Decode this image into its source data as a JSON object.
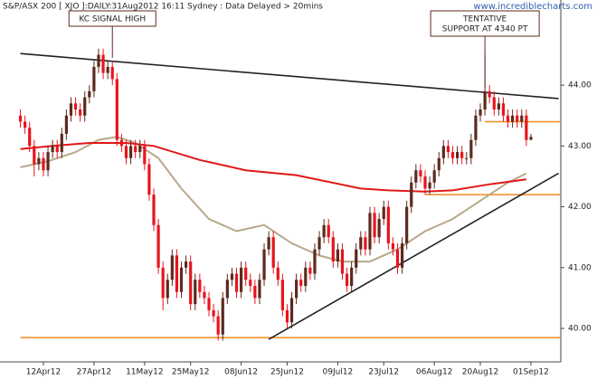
{
  "chart_data": {
    "type": "candlestick",
    "header": "S&P/ASX 200 [ XJO ]:DAILY:31Aug2012 16:11 Sydney : Data Delayed > 20mins",
    "source": "www.incrediblecharts.com",
    "up_color": "#5c2a1e",
    "down_color": "#e8141c",
    "ylim": [
      39.45,
      45.4
    ],
    "yticks": [
      {
        "value": 40,
        "label": "40.00"
      },
      {
        "value": 41,
        "label": "41.00"
      },
      {
        "value": 42,
        "label": "42.00"
      },
      {
        "value": 43,
        "label": "43.00"
      },
      {
        "value": 44,
        "label": "44.00"
      }
    ],
    "categories": [
      null,
      null,
      null,
      null,
      null,
      "12Apr12",
      null,
      null,
      null,
      null,
      null,
      null,
      null,
      null,
      null,
      null,
      "27Apr12",
      null,
      null,
      null,
      null,
      null,
      null,
      null,
      null,
      null,
      null,
      "11May12",
      null,
      null,
      null,
      null,
      null,
      null,
      null,
      null,
      null,
      "25May12",
      null,
      null,
      null,
      null,
      null,
      null,
      null,
      null,
      null,
      null,
      "08Jun12",
      null,
      null,
      null,
      null,
      null,
      null,
      null,
      null,
      null,
      "25Jun12",
      null,
      null,
      null,
      null,
      null,
      null,
      null,
      null,
      null,
      null,
      "09Jul12",
      null,
      null,
      null,
      null,
      null,
      null,
      null,
      null,
      null,
      "23Jul12",
      null,
      null,
      null,
      null,
      null,
      null,
      null,
      null,
      null,
      null,
      "06Aug12",
      null,
      null,
      null,
      null,
      null,
      null,
      null,
      null,
      null,
      "20Aug12",
      null,
      null,
      null,
      null,
      null,
      null,
      null,
      null,
      null,
      null,
      "01Sep12"
    ],
    "ohlc": [
      [
        43.5,
        43.6,
        43.3,
        43.4
      ],
      [
        43.4,
        43.5,
        43.2,
        43.3
      ],
      [
        43.3,
        43.4,
        42.9,
        43.0
      ],
      [
        43.0,
        43.1,
        42.5,
        42.7
      ],
      [
        42.7,
        42.9,
        42.6,
        42.8
      ],
      [
        42.8,
        42.9,
        42.5,
        42.6
      ],
      [
        42.6,
        43.0,
        42.5,
        42.9
      ],
      [
        42.9,
        43.1,
        42.8,
        43.0
      ],
      [
        43.0,
        43.1,
        42.8,
        42.9
      ],
      [
        42.9,
        43.3,
        42.8,
        43.2
      ],
      [
        43.2,
        43.6,
        43.1,
        43.5
      ],
      [
        43.5,
        43.8,
        43.4,
        43.7
      ],
      [
        43.7,
        43.8,
        43.5,
        43.6
      ],
      [
        43.6,
        43.7,
        43.4,
        43.5
      ],
      [
        43.5,
        43.9,
        43.4,
        43.8
      ],
      [
        43.8,
        44.0,
        43.7,
        43.9
      ],
      [
        43.9,
        44.4,
        43.8,
        44.3
      ],
      [
        44.3,
        44.6,
        44.2,
        44.5
      ],
      [
        44.5,
        44.6,
        44.1,
        44.2
      ],
      [
        44.2,
        44.4,
        44.1,
        44.3
      ],
      [
        44.3,
        44.4,
        44.0,
        44.1
      ],
      [
        44.1,
        44.2,
        43.0,
        43.1
      ],
      [
        43.1,
        43.2,
        42.9,
        43.0
      ],
      [
        43.0,
        43.1,
        42.7,
        42.8
      ],
      [
        42.8,
        43.1,
        42.7,
        43.0
      ],
      [
        43.0,
        43.1,
        42.8,
        42.9
      ],
      [
        42.9,
        43.1,
        42.8,
        43.0
      ],
      [
        43.0,
        43.1,
        42.6,
        42.7
      ],
      [
        42.7,
        42.8,
        42.1,
        42.2
      ],
      [
        42.2,
        42.3,
        41.6,
        41.7
      ],
      [
        41.7,
        41.8,
        40.9,
        41.0
      ],
      [
        41.0,
        41.1,
        40.3,
        40.5
      ],
      [
        40.5,
        40.9,
        40.4,
        40.8
      ],
      [
        40.8,
        41.3,
        40.7,
        41.2
      ],
      [
        41.2,
        41.3,
        40.5,
        40.6
      ],
      [
        40.6,
        41.1,
        40.5,
        41.0
      ],
      [
        41.0,
        41.2,
        40.9,
        41.1
      ],
      [
        41.1,
        41.2,
        40.3,
        40.4
      ],
      [
        40.4,
        40.9,
        40.3,
        40.8
      ],
      [
        40.8,
        40.9,
        40.5,
        40.6
      ],
      [
        40.6,
        40.7,
        40.4,
        40.5
      ],
      [
        40.5,
        40.6,
        40.2,
        40.3
      ],
      [
        40.3,
        40.4,
        40.1,
        40.2
      ],
      [
        40.2,
        40.3,
        39.8,
        39.9
      ],
      [
        39.9,
        40.6,
        39.8,
        40.5
      ],
      [
        40.5,
        40.9,
        40.4,
        40.8
      ],
      [
        40.8,
        41.0,
        40.7,
        40.9
      ],
      [
        40.9,
        41.0,
        40.5,
        40.6
      ],
      [
        40.6,
        41.1,
        40.5,
        41.0
      ],
      [
        41.0,
        41.1,
        40.7,
        40.8
      ],
      [
        40.8,
        40.9,
        40.6,
        40.7
      ],
      [
        40.7,
        40.8,
        40.4,
        40.5
      ],
      [
        40.5,
        40.9,
        40.4,
        40.8
      ],
      [
        40.8,
        41.4,
        40.7,
        41.3
      ],
      [
        41.3,
        41.6,
        41.2,
        41.5
      ],
      [
        41.5,
        41.6,
        40.9,
        41.0
      ],
      [
        41.0,
        41.1,
        40.7,
        40.8
      ],
      [
        40.8,
        40.9,
        40.2,
        40.3
      ],
      [
        40.3,
        40.4,
        40.0,
        40.1
      ],
      [
        40.1,
        40.6,
        40.0,
        40.5
      ],
      [
        40.5,
        40.9,
        40.4,
        40.8
      ],
      [
        40.8,
        40.9,
        40.6,
        40.7
      ],
      [
        40.7,
        41.1,
        40.6,
        41.0
      ],
      [
        41.0,
        41.1,
        40.8,
        40.9
      ],
      [
        40.9,
        41.4,
        40.8,
        41.3
      ],
      [
        41.3,
        41.6,
        41.2,
        41.5
      ],
      [
        41.5,
        41.8,
        41.4,
        41.7
      ],
      [
        41.7,
        41.8,
        41.4,
        41.5
      ],
      [
        41.5,
        41.6,
        41.0,
        41.1
      ],
      [
        41.1,
        41.4,
        41.0,
        41.3
      ],
      [
        41.3,
        41.4,
        40.8,
        40.9
      ],
      [
        40.9,
        41.0,
        40.6,
        40.7
      ],
      [
        40.7,
        41.1,
        40.6,
        41.0
      ],
      [
        41.0,
        41.4,
        40.9,
        41.3
      ],
      [
        41.3,
        41.6,
        41.2,
        41.5
      ],
      [
        41.5,
        41.6,
        41.2,
        41.3
      ],
      [
        41.3,
        42.0,
        41.2,
        41.9
      ],
      [
        41.9,
        42.0,
        41.4,
        41.5
      ],
      [
        41.5,
        41.9,
        41.4,
        41.8
      ],
      [
        41.8,
        42.1,
        41.7,
        42.0
      ],
      [
        42.0,
        42.1,
        41.3,
        41.4
      ],
      [
        41.4,
        41.5,
        41.2,
        41.3
      ],
      [
        41.3,
        41.4,
        40.9,
        41.0
      ],
      [
        41.0,
        41.5,
        40.9,
        41.4
      ],
      [
        41.4,
        42.1,
        41.3,
        42.0
      ],
      [
        42.0,
        42.5,
        41.9,
        42.4
      ],
      [
        42.4,
        42.7,
        42.3,
        42.6
      ],
      [
        42.6,
        42.7,
        42.4,
        42.5
      ],
      [
        42.5,
        42.6,
        42.2,
        42.3
      ],
      [
        42.3,
        42.5,
        42.2,
        42.4
      ],
      [
        42.4,
        42.7,
        42.3,
        42.6
      ],
      [
        42.6,
        42.9,
        42.5,
        42.8
      ],
      [
        42.8,
        43.1,
        42.7,
        43.0
      ],
      [
        43.0,
        43.1,
        42.8,
        42.9
      ],
      [
        42.9,
        43.0,
        42.7,
        42.8
      ],
      [
        42.8,
        43.0,
        42.7,
        42.9
      ],
      [
        42.9,
        43.0,
        42.7,
        42.8
      ],
      [
        42.8,
        42.9,
        42.7,
        42.8
      ],
      [
        42.8,
        43.2,
        42.7,
        43.1
      ],
      [
        43.1,
        43.6,
        43.0,
        43.5
      ],
      [
        43.5,
        43.7,
        43.4,
        43.6
      ],
      [
        43.6,
        44.5,
        43.5,
        43.9
      ],
      [
        43.9,
        44.0,
        43.7,
        43.8
      ],
      [
        43.8,
        43.9,
        43.5,
        43.6
      ],
      [
        43.6,
        43.8,
        43.5,
        43.7
      ],
      [
        43.7,
        43.8,
        43.4,
        43.5
      ],
      [
        43.5,
        43.6,
        43.3,
        43.4
      ],
      [
        43.4,
        43.6,
        43.3,
        43.5
      ],
      [
        43.5,
        43.6,
        43.3,
        43.4
      ],
      [
        43.4,
        43.6,
        43.3,
        43.5
      ],
      [
        43.5,
        43.6,
        43.0,
        43.1
      ],
      [
        43.1,
        43.2,
        43.1,
        43.15
      ]
    ],
    "moving_averages": [
      {
        "color": "#b8a88a",
        "points": [
          [
            0,
            42.65
          ],
          [
            6,
            42.75
          ],
          [
            12,
            42.9
          ],
          [
            17,
            43.1
          ],
          [
            21,
            43.15
          ],
          [
            25,
            43.05
          ],
          [
            30,
            42.8
          ],
          [
            35,
            42.3
          ],
          [
            41,
            41.8
          ],
          [
            47,
            41.6
          ],
          [
            53,
            41.7
          ],
          [
            59,
            41.4
          ],
          [
            65,
            41.2
          ],
          [
            70,
            41.1
          ],
          [
            76,
            41.1
          ],
          [
            82,
            41.3
          ],
          [
            88,
            41.6
          ],
          [
            94,
            41.8
          ],
          [
            100,
            42.1
          ],
          [
            106,
            42.4
          ],
          [
            110,
            42.55
          ]
        ]
      },
      {
        "color": "#e01818",
        "points": [
          [
            0,
            42.95
          ],
          [
            7,
            43.0
          ],
          [
            15,
            43.05
          ],
          [
            23,
            43.05
          ],
          [
            29,
            43.0
          ],
          [
            39,
            42.77
          ],
          [
            49,
            42.6
          ],
          [
            60,
            42.52
          ],
          [
            74,
            42.3
          ],
          [
            80,
            42.27
          ],
          [
            88,
            42.25
          ],
          [
            94,
            42.27
          ],
          [
            102,
            42.37
          ],
          [
            110,
            42.45
          ]
        ]
      }
    ],
    "trendlines": [
      {
        "color": "#222222",
        "points": [
          [
            0,
            44.52
          ],
          [
            117,
            43.78
          ]
        ]
      },
      {
        "color": "#222222",
        "points": [
          [
            54,
            39.82
          ],
          [
            117,
            42.55
          ]
        ]
      }
    ],
    "levels": [
      {
        "color": "#f08a1c",
        "value": 39.85,
        "from": 0
      },
      {
        "color": "#f08a1c",
        "value": 42.2,
        "from": 88
      },
      {
        "color": "#f08a1c",
        "value": 43.4,
        "from": 101
      }
    ],
    "annotations": [
      {
        "lines": [
          "KC SIGNAL HIGH"
        ],
        "point": [
          20,
          44.45
        ]
      },
      {
        "lines": [
          "TENTATIVE",
          "SUPPORT AT 4340 PT"
        ],
        "point": [
          101,
          43.97
        ]
      }
    ]
  }
}
